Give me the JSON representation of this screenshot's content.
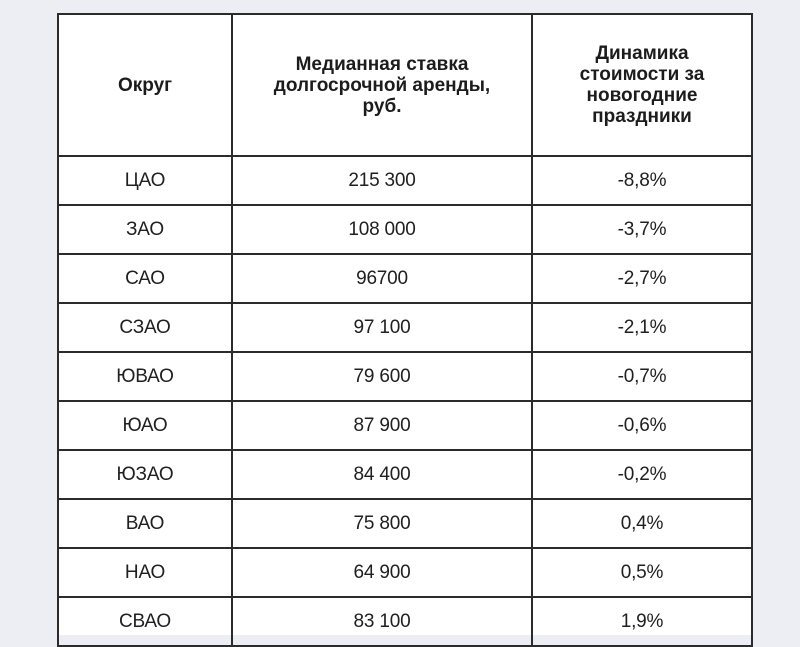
{
  "table": {
    "headers": {
      "district": "Округ",
      "rate": "Медианная ставка долгосрочной аренды, руб.",
      "change": "Динамика стоимости за новогодние праздники"
    },
    "rows": [
      {
        "district": "ЦАО",
        "rate": "215 300",
        "change": "-8,8%"
      },
      {
        "district": "ЗАО",
        "rate": "108 000",
        "change": "-3,7%"
      },
      {
        "district": "САО",
        "rate": "96700",
        "change": "-2,7%"
      },
      {
        "district": "СЗАО",
        "rate": "97 100",
        "change": "-2,1%"
      },
      {
        "district": "ЮВАО",
        "rate": "79 600",
        "change": "-0,7%"
      },
      {
        "district": "ЮАО",
        "rate": "87 900",
        "change": "-0,6%"
      },
      {
        "district": "ЮЗАО",
        "rate": "84 400",
        "change": "-0,2%"
      },
      {
        "district": "ВАО",
        "rate": "75 800",
        "change": "0,4%"
      },
      {
        "district": "НАО",
        "rate": "64 900",
        "change": "0,5%"
      },
      {
        "district": "СВАО",
        "rate": "83 100",
        "change": "1,9%"
      }
    ]
  }
}
